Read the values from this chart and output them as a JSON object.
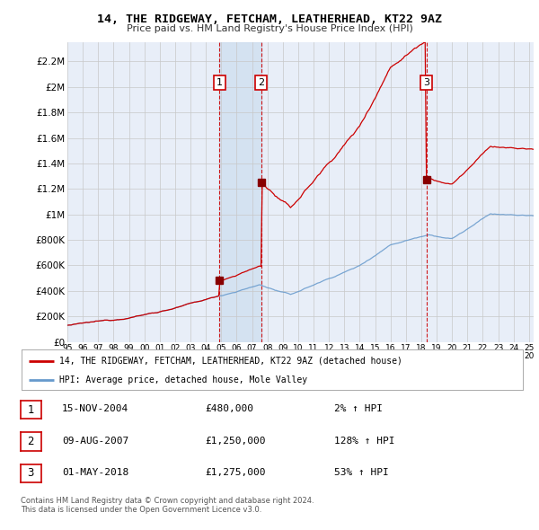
{
  "title": "14, THE RIDGEWAY, FETCHAM, LEATHERHEAD, KT22 9AZ",
  "subtitle": "Price paid vs. HM Land Registry's House Price Index (HPI)",
  "ylabel_ticks": [
    "£0",
    "£200K",
    "£400K",
    "£600K",
    "£800K",
    "£1M",
    "£1.2M",
    "£1.4M",
    "£1.6M",
    "£1.8M",
    "£2M",
    "£2.2M"
  ],
  "ytick_values": [
    0,
    200000,
    400000,
    600000,
    800000,
    1000000,
    1200000,
    1400000,
    1600000,
    1800000,
    2000000,
    2200000
  ],
  "ylim": [
    0,
    2350000
  ],
  "xlim_start": 1995.5,
  "xlim_end": 2025.3,
  "sale_dates": [
    2004.88,
    2007.6,
    2018.33
  ],
  "sale_prices": [
    480000,
    1250000,
    1275000
  ],
  "sale_labels": [
    "1",
    "2",
    "3"
  ],
  "highlight_start": 2004.88,
  "highlight_end": 2007.6,
  "legend_line1": "14, THE RIDGEWAY, FETCHAM, LEATHERHEAD, KT22 9AZ (detached house)",
  "legend_line2": "HPI: Average price, detached house, Mole Valley",
  "table_rows": [
    [
      "1",
      "15-NOV-2004",
      "£480,000",
      "2% ↑ HPI"
    ],
    [
      "2",
      "09-AUG-2007",
      "£1,250,000",
      "128% ↑ HPI"
    ],
    [
      "3",
      "01-MAY-2018",
      "£1,275,000",
      "53% ↑ HPI"
    ]
  ],
  "footer1": "Contains HM Land Registry data © Crown copyright and database right 2024.",
  "footer2": "This data is licensed under the Open Government Licence v3.0.",
  "background_color": "#e8eef8",
  "grid_color": "#c8c8c8",
  "hpi_line_color": "#6699cc",
  "price_line_color": "#cc0000",
  "vline_color": "#cc0000",
  "box_color": "#cc0000",
  "highlight_color": "#d0dff0"
}
